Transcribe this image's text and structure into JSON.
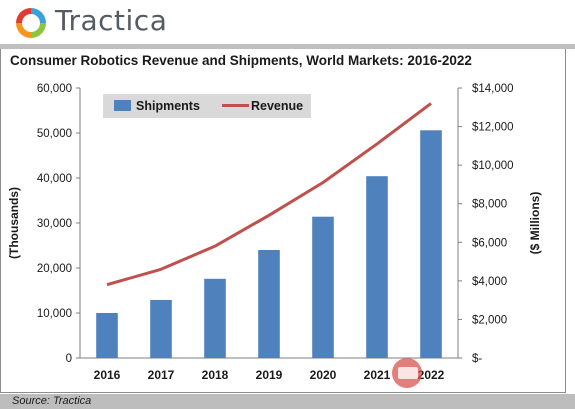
{
  "header": {
    "brand": "Tractica"
  },
  "source_note": "Source: Tractica",
  "colors": {
    "bar": "#4f81bd",
    "line": "#c0504d",
    "brand_text": "#555b63"
  },
  "chart_data": {
    "type": "bar",
    "title": "Consumer Robotics Revenue and Shipments, World Markets: 2016-2022",
    "categories": [
      "2016",
      "2017",
      "2018",
      "2019",
      "2020",
      "2021",
      "2022"
    ],
    "series": [
      {
        "name": "Shipments",
        "type": "bar",
        "axis": "left",
        "values": [
          10000,
          12900,
          17600,
          24000,
          31400,
          40400,
          50600
        ]
      },
      {
        "name": "Revenue",
        "type": "line",
        "axis": "right",
        "values": [
          3800,
          4600,
          5800,
          7400,
          9100,
          11100,
          13200
        ]
      }
    ],
    "ylabel_left": "(Thousands)",
    "ylabel_right": "($ Millions)",
    "ylim_left": [
      0,
      60000
    ],
    "ylim_right": [
      0,
      14000
    ],
    "yticks_left": [
      "0",
      "10,000",
      "20,000",
      "30,000",
      "40,000",
      "50,000",
      "60,000"
    ],
    "yticks_right": [
      "$-",
      "$2,000",
      "$4,000",
      "$6,000",
      "$8,000",
      "$10,000",
      "$12,000",
      "$14,000"
    ],
    "legend": "top-left",
    "grid": false
  }
}
